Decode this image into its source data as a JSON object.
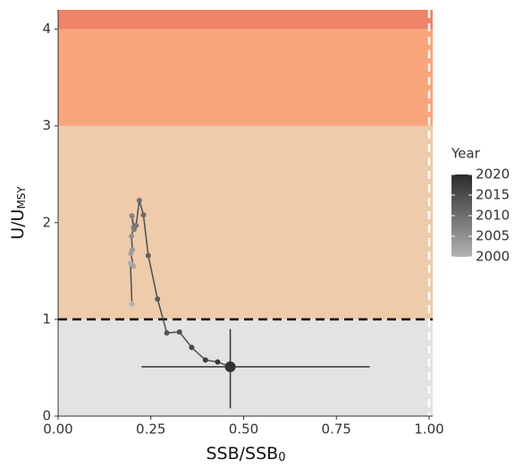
{
  "chart_data": {
    "type": "scatter",
    "x_label": "SSB/SSB",
    "x_label_sub": "0",
    "y_label": "U/U",
    "y_label_sub": "MSY",
    "xlim": [
      0,
      1
    ],
    "ylim": [
      0,
      4.2
    ],
    "xticks": [
      {
        "value": 0,
        "label": "0.00"
      },
      {
        "value": 0.25,
        "label": "0.25"
      },
      {
        "value": 0.5,
        "label": "0.50"
      },
      {
        "value": 0.75,
        "label": "0.75"
      },
      {
        "value": 1,
        "label": "1.00"
      }
    ],
    "yticks": [
      0,
      1,
      2,
      3,
      4
    ],
    "bands": [
      {
        "from": 0,
        "to": 1,
        "color": "#e3e3e3"
      },
      {
        "from": 1,
        "to": 3,
        "color": "#eecbaa"
      },
      {
        "from": 3,
        "to": 4,
        "color": "#f9a57c"
      },
      {
        "from": 4,
        "to": 4.2,
        "color": "#ee8468"
      }
    ],
    "hline": 1,
    "vline": 1,
    "series": [
      {
        "line_color": "#4d4d4d",
        "x": [
          0.199,
          0.195,
          0.203,
          0.196,
          0.2,
          0.198,
          0.203,
          0.199,
          0.205,
          0.21,
          0.219,
          0.23,
          0.243,
          0.268,
          0.293,
          0.327,
          0.36,
          0.397,
          0.43,
          0.464
        ],
        "values": [
          1.16,
          1.58,
          1.55,
          1.68,
          1.72,
          1.86,
          1.95,
          2.07,
          1.93,
          1.97,
          2.23,
          2.08,
          1.66,
          1.21,
          0.86,
          0.87,
          0.71,
          0.58,
          0.56,
          0.51
        ],
        "years": [
          2000,
          2001,
          2002,
          2003,
          2004,
          2005,
          2006,
          2007,
          2008,
          2009,
          2010,
          2011,
          2012,
          2013,
          2014,
          2015,
          2016,
          2017,
          2018,
          2019
        ],
        "error_x": [
          0.225,
          0.84
        ],
        "error_y": [
          0.08,
          0.9
        ]
      }
    ],
    "legend": {
      "title": "Year",
      "ticks": [
        2000,
        2005,
        2010,
        2015,
        2020
      ],
      "range": [
        2000,
        2020
      ],
      "color_low": "#b3b3b3",
      "color_high": "#2b2b2b"
    }
  }
}
